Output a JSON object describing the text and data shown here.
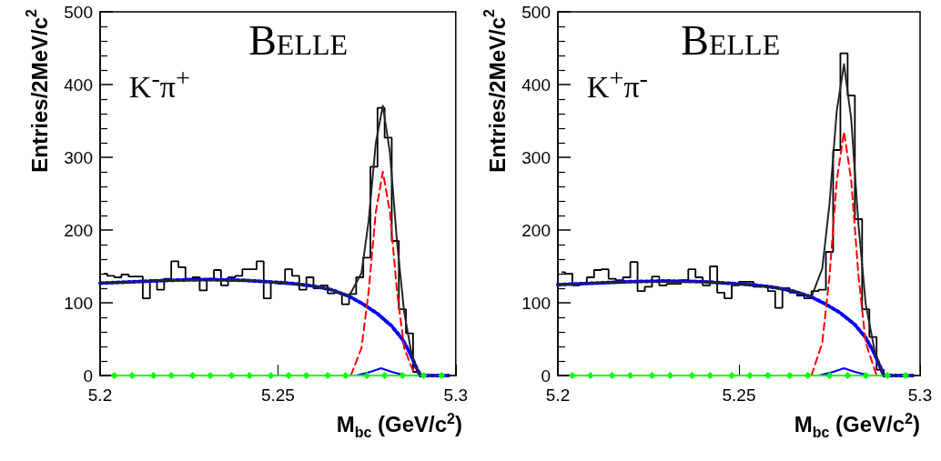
{
  "chart_data": [
    {
      "type": "step",
      "xlabel": "M$_{bc}$ (GeV/c$^{2}$)",
      "ylabel": "Entries/2MeV/c$^{2}$",
      "annotations": [
        "Belle",
        "K$^{-}$π$^{+}$"
      ],
      "color": "#000000",
      "x": [
        5.201,
        5.203,
        5.205,
        5.207,
        5.209,
        5.211,
        5.213,
        5.215,
        5.217,
        5.219,
        5.221,
        5.223,
        5.225,
        5.227,
        5.229,
        5.231,
        5.233,
        5.235,
        5.237,
        5.239,
        5.241,
        5.243,
        5.245,
        5.247,
        5.249,
        5.251,
        5.253,
        5.255,
        5.257,
        5.259,
        5.261,
        5.263,
        5.265,
        5.267,
        5.269,
        5.271,
        5.273,
        5.275,
        5.277,
        5.279,
        5.281,
        5.283,
        5.285,
        5.287,
        5.289,
        5.291,
        5.293,
        5.295,
        5.297,
        5.299
      ],
      "values": [
        140,
        137,
        135,
        139,
        136,
        136,
        106,
        131,
        118,
        133,
        157,
        149,
        133,
        135,
        117,
        133,
        145,
        124,
        135,
        137,
        146,
        146,
        157,
        106,
        129,
        126,
        146,
        137,
        118,
        135,
        120,
        124,
        113,
        114,
        98,
        112,
        135,
        162,
        287,
        368,
        327,
        185,
        91,
        58,
        5,
        0,
        0,
        0,
        0,
        0
      ],
      "series": [
        {
          "type": "line",
          "color": "#0000ff",
          "line_style": "dotted",
          "x": [
            5.2,
            5.21,
            5.22,
            5.23,
            5.24,
            5.25,
            5.255,
            5.26,
            5.265,
            5.27,
            5.274,
            5.278,
            5.282,
            5.285,
            5.287,
            5.289,
            5.29,
            5.295,
            5.298
          ],
          "values": [
            127,
            129,
            131,
            132,
            131,
            128,
            126,
            123,
            118,
            109,
            98,
            85,
            68,
            50,
            32,
            10,
            0,
            0,
            0
          ]
        },
        {
          "type": "line",
          "color": "#ff0000",
          "line_style": "dashed",
          "x": [
            5.2705,
            5.2735,
            5.2755,
            5.2775,
            5.2795,
            5.2815,
            5.2835,
            5.2855,
            5.2885
          ],
          "values": [
            0,
            38,
            115,
            224,
            280,
            224,
            115,
            38,
            0
          ]
        },
        {
          "type": "line",
          "color": "#0000ff",
          "line_style": "solid",
          "x": [
            5.272,
            5.276,
            5.279,
            5.282,
            5.286
          ],
          "values": [
            0,
            5,
            10,
            5,
            0
          ]
        },
        {
          "type": "line",
          "color": "#00ff00",
          "line_style": "solid",
          "marker": "diamond",
          "x": [
            5.204,
            5.209,
            5.215,
            5.22,
            5.226,
            5.231,
            5.237,
            5.242,
            5.248,
            5.253,
            5.258,
            5.264,
            5.269,
            5.275,
            5.28,
            5.285,
            5.291,
            5.296
          ],
          "values": [
            0,
            0,
            0,
            0,
            0,
            0,
            0,
            0,
            0,
            0,
            0,
            0,
            0,
            0,
            0,
            0,
            0,
            0
          ]
        },
        {
          "type": "line",
          "color": "#262626",
          "line_style": "solid",
          "x": [
            5.2,
            5.22,
            5.24,
            5.25,
            5.26,
            5.265,
            5.27,
            5.2735,
            5.2755,
            5.2775,
            5.2795,
            5.2815,
            5.2835,
            5.2855,
            5.2875,
            5.289,
            5.29,
            5.3
          ],
          "values": [
            127,
            131,
            131,
            128,
            123,
            118,
            109,
            141,
            212,
            319,
            371,
            306,
            183,
            87,
            32,
            10,
            0,
            0
          ]
        }
      ],
      "xlim": [
        5.2,
        5.3
      ],
      "xticks": [
        5.2,
        5.25,
        5.3
      ],
      "ylim": [
        0,
        500
      ],
      "yticks": [
        0,
        100,
        200,
        300,
        400,
        500
      ]
    },
    {
      "type": "step",
      "xlabel": "M$_{bc}$ (GeV/c$^{2}$)",
      "ylabel": "Entries/2MeV/c$^{2}$",
      "annotations": [
        "Belle",
        "K$^{+}$π$^{-}$"
      ],
      "color": "#000000",
      "x": [
        5.201,
        5.203,
        5.205,
        5.207,
        5.209,
        5.211,
        5.213,
        5.215,
        5.217,
        5.219,
        5.221,
        5.223,
        5.225,
        5.227,
        5.229,
        5.231,
        5.233,
        5.235,
        5.237,
        5.239,
        5.241,
        5.243,
        5.245,
        5.247,
        5.249,
        5.251,
        5.253,
        5.255,
        5.257,
        5.259,
        5.261,
        5.263,
        5.265,
        5.267,
        5.269,
        5.271,
        5.273,
        5.275,
        5.277,
        5.279,
        5.281,
        5.283,
        5.285,
        5.287,
        5.289,
        5.291,
        5.293,
        5.295,
        5.297,
        5.299
      ],
      "values": [
        142,
        140,
        124,
        126,
        135,
        145,
        146,
        133,
        131,
        135,
        156,
        116,
        122,
        136,
        124,
        126,
        126,
        131,
        146,
        135,
        124,
        150,
        114,
        106,
        124,
        129,
        129,
        122,
        124,
        116,
        93,
        120,
        114,
        110,
        106,
        116,
        118,
        170,
        310,
        443,
        385,
        215,
        91,
        53,
        8,
        0,
        0,
        0,
        0,
        0
      ],
      "series": [
        {
          "type": "line",
          "color": "#0000ff",
          "line_style": "dotted",
          "x": [
            5.2,
            5.21,
            5.22,
            5.23,
            5.24,
            5.25,
            5.255,
            5.26,
            5.265,
            5.27,
            5.274,
            5.278,
            5.282,
            5.285,
            5.287,
            5.289,
            5.29,
            5.295,
            5.298
          ],
          "values": [
            125,
            127,
            129,
            130,
            129,
            126,
            124,
            121,
            116,
            108,
            98,
            86,
            70,
            52,
            34,
            12,
            0,
            0,
            0
          ]
        },
        {
          "type": "line",
          "color": "#ff0000",
          "line_style": "dashed",
          "x": [
            5.27,
            5.273,
            5.275,
            5.277,
            5.279,
            5.281,
            5.283,
            5.285,
            5.288
          ],
          "values": [
            0,
            45,
            137,
            268,
            335,
            268,
            137,
            45,
            0
          ]
        },
        {
          "type": "line",
          "color": "#0000ff",
          "line_style": "solid",
          "x": [
            5.272,
            5.276,
            5.279,
            5.282,
            5.286
          ],
          "values": [
            0,
            5,
            10,
            5,
            0
          ]
        },
        {
          "type": "line",
          "color": "#00ff00",
          "line_style": "solid",
          "marker": "diamond",
          "x": [
            5.204,
            5.209,
            5.215,
            5.22,
            5.226,
            5.231,
            5.237,
            5.242,
            5.248,
            5.253,
            5.258,
            5.264,
            5.269,
            5.275,
            5.28,
            5.285,
            5.291,
            5.296
          ],
          "values": [
            0,
            0,
            0,
            0,
            0,
            0,
            0,
            0,
            0,
            0,
            0,
            0,
            0,
            0,
            0,
            0,
            0,
            0
          ]
        },
        {
          "type": "line",
          "color": "#262626",
          "line_style": "solid",
          "x": [
            5.2,
            5.22,
            5.24,
            5.25,
            5.26,
            5.265,
            5.27,
            5.273,
            5.275,
            5.277,
            5.279,
            5.281,
            5.283,
            5.285,
            5.2875,
            5.289,
            5.29,
            5.3
          ],
          "values": [
            125,
            129,
            129,
            126,
            121,
            116,
            108,
            147,
            236,
            364,
            428,
            352,
            207,
            98,
            33,
            12,
            0,
            0
          ]
        }
      ],
      "xlim": [
        5.2,
        5.3
      ],
      "xticks": [
        5.2,
        5.25,
        5.3
      ],
      "ylim": [
        0,
        500
      ],
      "yticks": [
        0,
        100,
        200,
        300,
        400,
        500
      ]
    }
  ]
}
